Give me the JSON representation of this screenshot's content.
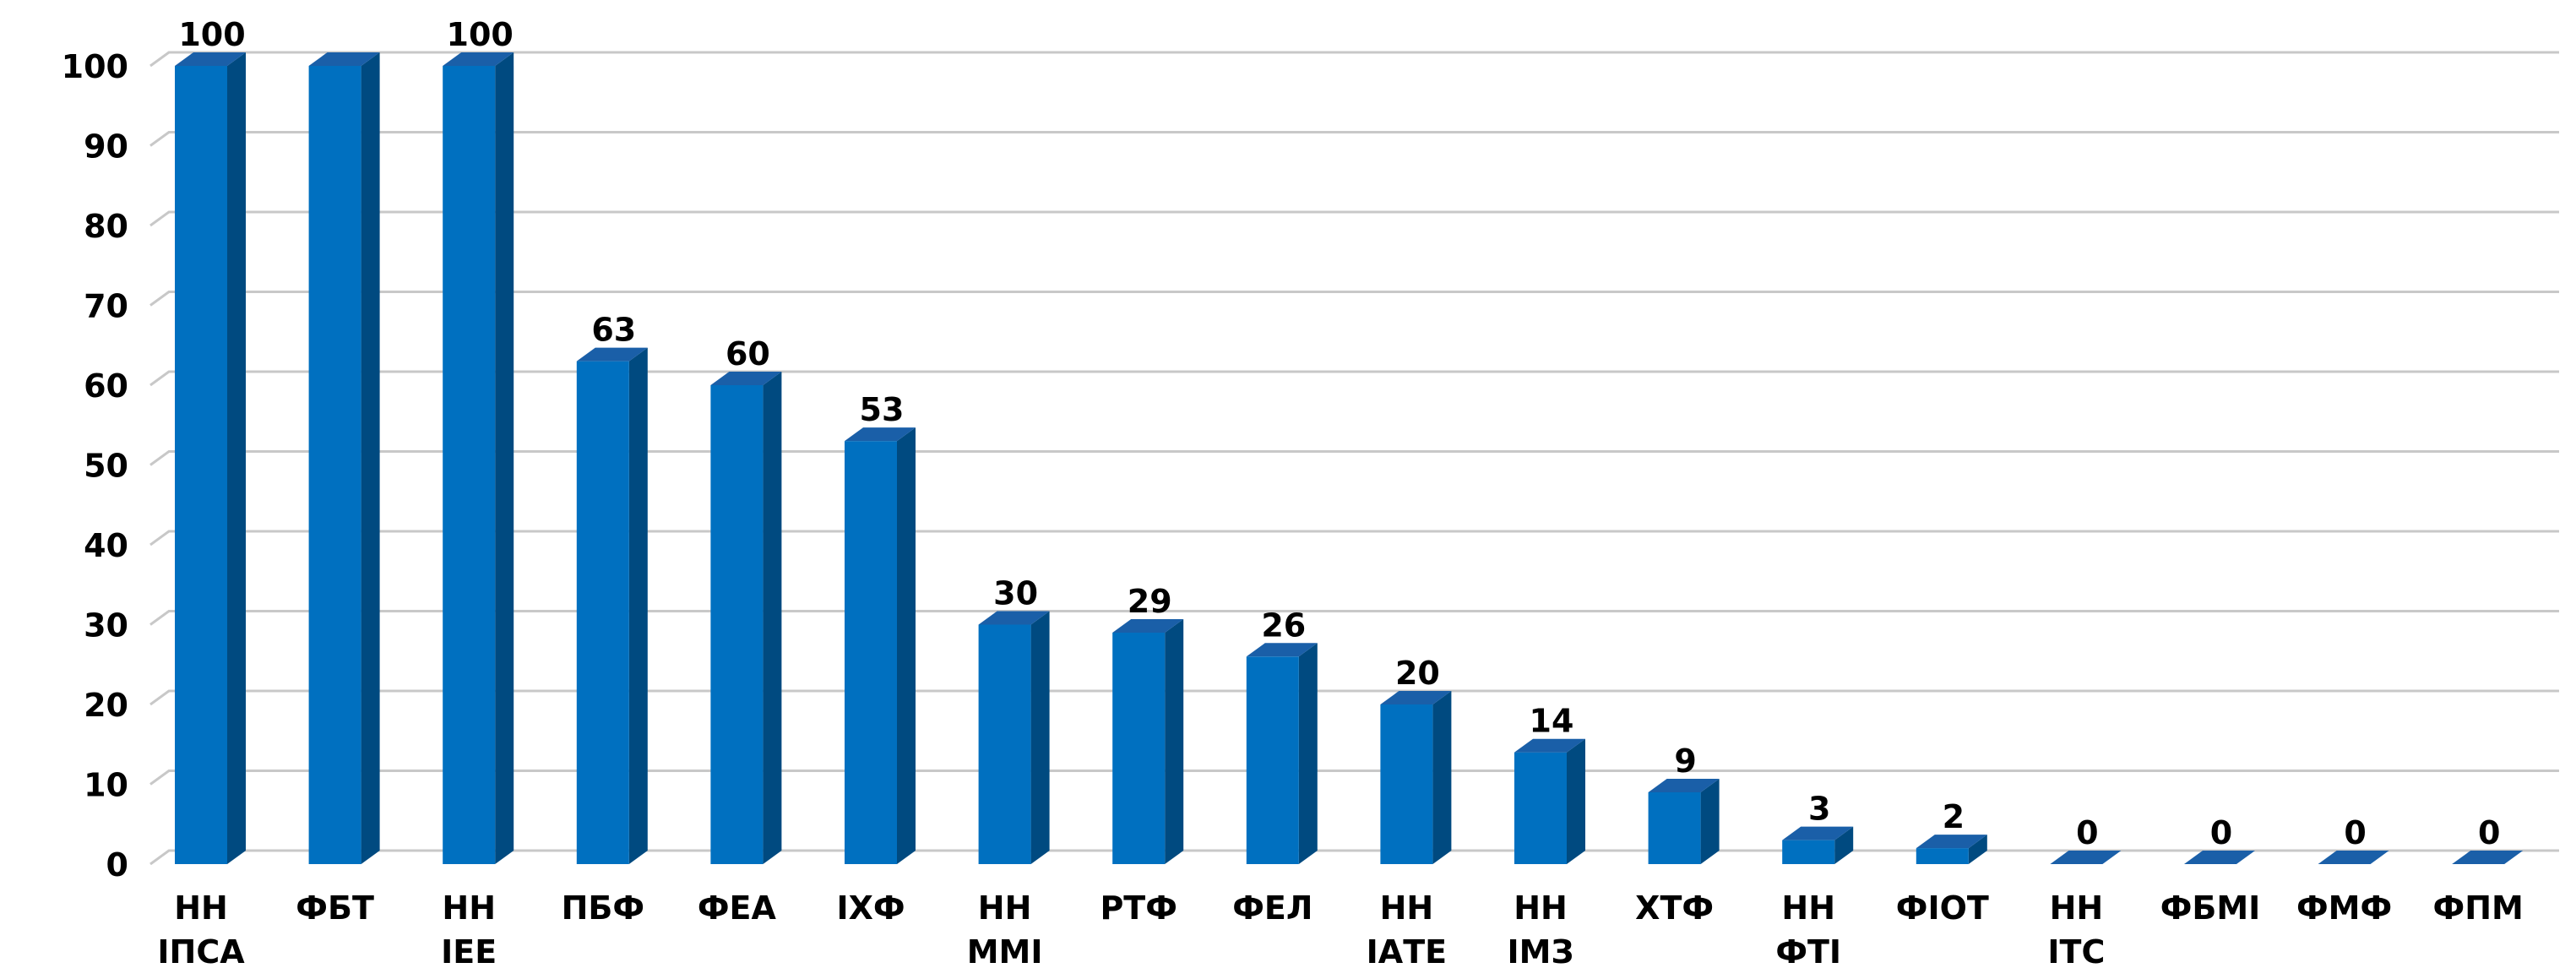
{
  "chart_data": {
    "type": "bar",
    "categories": [
      [
        "НН",
        "ІПСА"
      ],
      [
        "ФБТ"
      ],
      [
        "НН",
        "ІЕЕ"
      ],
      [
        "ПБФ"
      ],
      [
        "ФЕА"
      ],
      [
        "ІХФ"
      ],
      [
        "НН",
        "ММІ"
      ],
      [
        "РТФ"
      ],
      [
        "ФЕЛ"
      ],
      [
        "НН",
        "ІАТЕ"
      ],
      [
        "НН",
        "ІМЗ"
      ],
      [
        "ХТФ"
      ],
      [
        "НН",
        "ФТІ"
      ],
      [
        "ФІОТ"
      ],
      [
        "НН",
        "ІТС"
      ],
      [
        "ФБМІ"
      ],
      [
        "ФМФ"
      ],
      [
        "ФПМ"
      ]
    ],
    "values": [
      100,
      100,
      100,
      63,
      60,
      53,
      30,
      29,
      26,
      20,
      14,
      9,
      3,
      2,
      0,
      0,
      0,
      0
    ],
    "data_labels": [
      "100",
      "",
      "100",
      "63",
      "60",
      "53",
      "30",
      "29",
      "26",
      "20",
      "14",
      "9",
      "3",
      "2",
      "0",
      "0",
      "0",
      "0"
    ],
    "yticks": [
      0,
      10,
      20,
      30,
      40,
      50,
      60,
      70,
      80,
      90,
      100
    ],
    "ylim": [
      0,
      100
    ],
    "grid": true,
    "style": "3d-column",
    "colors": {
      "bar_front": "#0070C0",
      "bar_side": "#004A80",
      "bar_top": "#1A5FA8",
      "grid": "#c8c8c8"
    }
  }
}
